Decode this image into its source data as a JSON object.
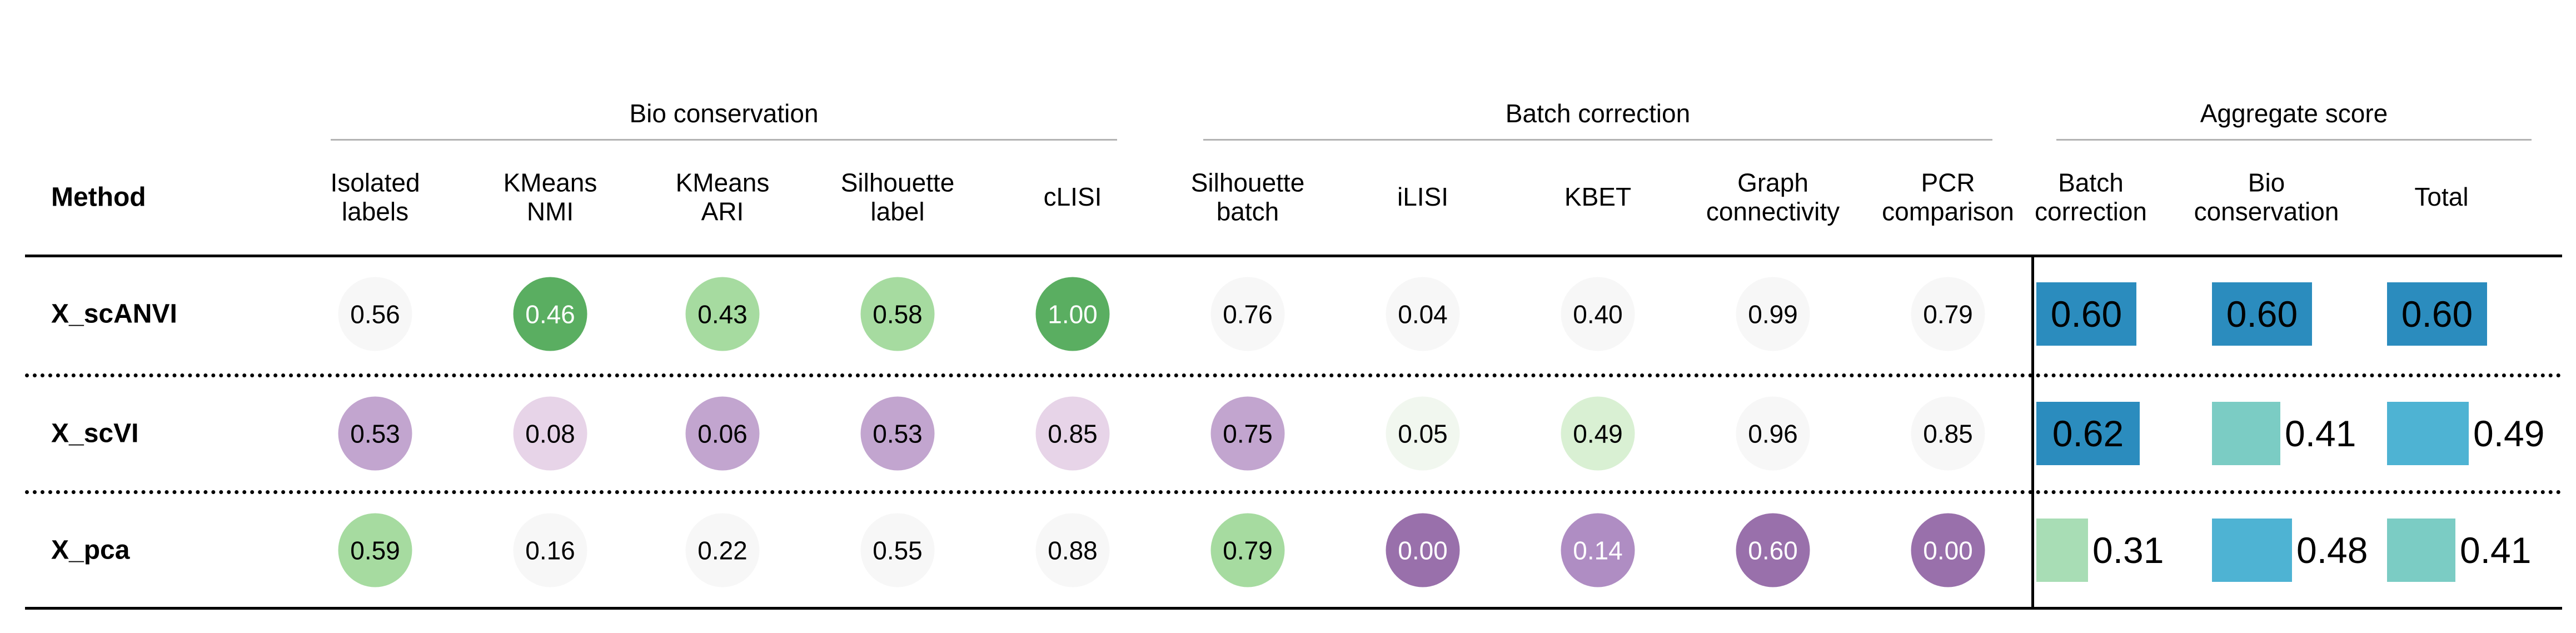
{
  "chart_data": {
    "type": "table",
    "method_header": "Method",
    "groups": [
      {
        "name": "Bio conservation",
        "columns": [
          0,
          1,
          2,
          3,
          4
        ]
      },
      {
        "name": "Batch correction",
        "columns": [
          5,
          6,
          7,
          8,
          9
        ]
      },
      {
        "name": "Aggregate score",
        "columns": [
          10,
          11,
          12
        ]
      }
    ],
    "columns": [
      {
        "label": "Isolated\nlabels",
        "kind": "circle"
      },
      {
        "label": "KMeans\nNMI",
        "kind": "circle"
      },
      {
        "label": "KMeans\nARI",
        "kind": "circle"
      },
      {
        "label": "Silhouette\nlabel",
        "kind": "circle"
      },
      {
        "label": "cLISI",
        "kind": "circle"
      },
      {
        "label": "Silhouette\nbatch",
        "kind": "circle"
      },
      {
        "label": "iLISI",
        "kind": "circle"
      },
      {
        "label": "KBET",
        "kind": "circle"
      },
      {
        "label": "Graph\nconnectivity",
        "kind": "circle"
      },
      {
        "label": "PCR\ncomparison",
        "kind": "circle"
      },
      {
        "label": "Batch\ncorrection",
        "kind": "bar"
      },
      {
        "label": "Bio\nconservation",
        "kind": "bar"
      },
      {
        "label": "Total",
        "kind": "bar"
      }
    ],
    "rows": [
      {
        "method": "X_scANVI",
        "values": [
          0.56,
          0.46,
          0.43,
          0.58,
          1.0,
          0.76,
          0.04,
          0.4,
          0.99,
          0.79,
          0.6,
          0.6,
          0.6
        ],
        "labels": [
          "0.56",
          "0.46",
          "0.43",
          "0.58",
          "1.00",
          "0.76",
          "0.04",
          "0.40",
          "0.99",
          "0.79",
          "0.60",
          "0.60",
          "0.60"
        ]
      },
      {
        "method": "X_scVI",
        "values": [
          0.53,
          0.08,
          0.06,
          0.53,
          0.85,
          0.75,
          0.05,
          0.49,
          0.96,
          0.85,
          0.62,
          0.41,
          0.49
        ],
        "labels": [
          "0.53",
          "0.08",
          "0.06",
          "0.53",
          "0.85",
          "0.75",
          "0.05",
          "0.49",
          "0.96",
          "0.85",
          "0.62",
          "0.41",
          "0.49"
        ]
      },
      {
        "method": "X_pca",
        "values": [
          0.59,
          0.16,
          0.22,
          0.55,
          0.88,
          0.79,
          0.0,
          0.14,
          0.6,
          0.0,
          0.31,
          0.48,
          0.41
        ],
        "labels": [
          "0.59",
          "0.16",
          "0.22",
          "0.55",
          "0.88",
          "0.79",
          "0.00",
          "0.14",
          "0.60",
          "0.00",
          "0.31",
          "0.48",
          "0.41"
        ]
      }
    ],
    "colors": {
      "circle": [
        [
          "#f7f7f7",
          "#5aae61",
          "#a6dba0",
          "#a6dba0",
          "#5aae61",
          "#f7f7f7",
          "#f7f7f7",
          "#f7f7f7",
          "#f7f7f7",
          "#f7f7f7"
        ],
        [
          "#c2a5cf",
          "#e7d4e8",
          "#c2a5cf",
          "#c2a5cf",
          "#e7d4e8",
          "#c2a5cf",
          "#f1f7ef",
          "#d9f0d3",
          "#f7f7f7",
          "#f7f7f7"
        ],
        [
          "#a6dba0",
          "#f7f7f7",
          "#f7f7f7",
          "#f7f7f7",
          "#f7f7f7",
          "#a6dba0",
          "#9970ab",
          "#af8dc3",
          "#9970ab",
          "#9970ab"
        ]
      ],
      "bar": [
        [
          "#2b8cbe",
          "#2b8cbe",
          "#2b8cbe"
        ],
        [
          "#2b8cbe",
          "#7bccc4",
          "#4eb3d3"
        ],
        [
          "#a8ddb5",
          "#4eb3d3",
          "#7bccc4"
        ]
      ],
      "circle_text_light": [
        [
          false,
          true,
          false,
          false,
          true,
          false,
          false,
          false,
          false,
          false
        ],
        [
          false,
          false,
          false,
          false,
          false,
          false,
          false,
          false,
          false,
          false
        ],
        [
          false,
          false,
          false,
          false,
          false,
          false,
          true,
          true,
          true,
          true
        ]
      ]
    }
  }
}
